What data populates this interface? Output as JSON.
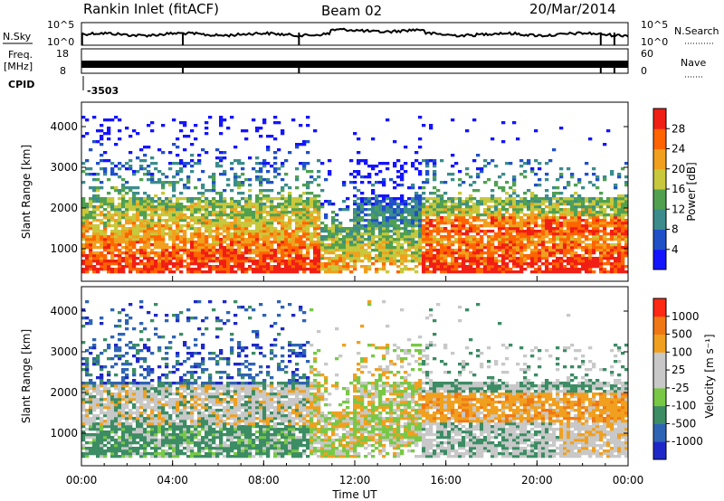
{
  "header": {
    "station": "Rankin Inlet (fitACF)",
    "beam": "Beam 02",
    "date": "20/Mar/2014"
  },
  "top_panels": {
    "nsky_label": "N.Sky",
    "nsky_ticks": [
      "10^5",
      "10^0"
    ],
    "nsearch_label": "N.Search",
    "nsearch_ticks": [
      "10^5",
      "10^0"
    ],
    "freq_label_1": "Freq.",
    "freq_label_2": "[MHz]",
    "freq_ticks": [
      "18",
      "8"
    ],
    "nave_label": "Nave",
    "nave_ticks": [
      "60",
      "0"
    ],
    "cpid_label": "CPID",
    "cpid_value": "-3503"
  },
  "chart_data": [
    {
      "type": "heatmap",
      "name": "power",
      "ylabel": "Slant Range [km]",
      "xlabel": "",
      "yticks": [
        1000,
        2000,
        3000,
        4000
      ],
      "ylim": [
        200,
        4600
      ],
      "xlim_hours": [
        0,
        24
      ],
      "colorbar": {
        "label": "Power [dB]",
        "ticks": [
          "4",
          "8",
          "12",
          "16",
          "20",
          "24",
          "28"
        ],
        "range": [
          0,
          32
        ],
        "colors": [
          "#1414ff",
          "#2050c8",
          "#3c8c8c",
          "#50a050",
          "#c8c83c",
          "#f0a01e",
          "#ff6400",
          "#f01e14"
        ]
      }
    },
    {
      "type": "heatmap",
      "name": "velocity",
      "ylabel": "Slant Range [km]",
      "xlabel": "Time UT",
      "yticks": [
        1000,
        2000,
        3000,
        4000
      ],
      "ylim": [
        200,
        4600
      ],
      "xlim_hours": [
        0,
        24
      ],
      "xticks": [
        "00:00",
        "04:00",
        "08:00",
        "12:00",
        "16:00",
        "20:00",
        "00:00"
      ],
      "colorbar": {
        "label": "Velocity [m s⁻¹]",
        "ticks": [
          "1000",
          "500",
          "100",
          "25",
          "-25",
          "-100",
          "-500",
          "-1000"
        ],
        "colors": [
          "#1e28c8",
          "#2e64b4",
          "#3c8c64",
          "#78c846",
          "#c8c8c8",
          "#c8c8c8",
          "#f0a01e",
          "#f07814",
          "#ff2814"
        ]
      }
    }
  ]
}
